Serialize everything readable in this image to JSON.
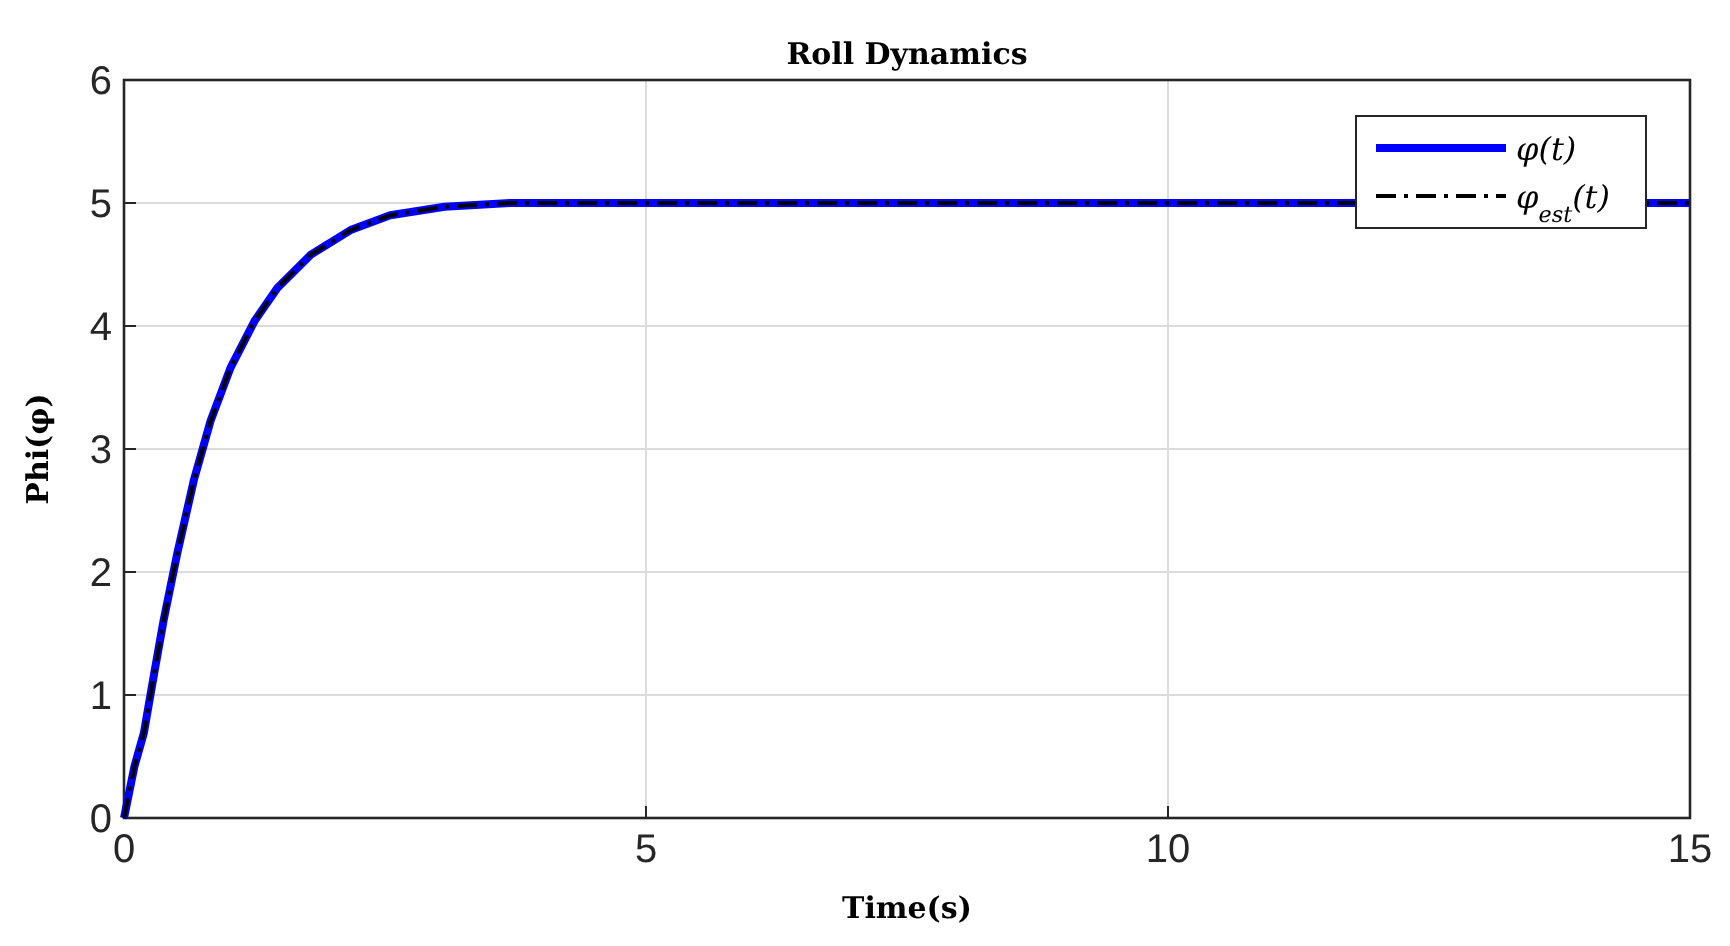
{
  "chart_data": {
    "type": "line",
    "title": "Roll Dynamics",
    "xlabel": "Time(s)",
    "ylabel": "Phi(φ)",
    "x": [
      0,
      0.1,
      0.19,
      0.29,
      0.38,
      0.51,
      0.67,
      0.83,
      1.02,
      1.25,
      1.47,
      1.79,
      2.17,
      2.55,
      3.07,
      3.7,
      4.85,
      15
    ],
    "series": [
      {
        "name": "φ(t)",
        "color": "#0000ff",
        "line_style": "solid",
        "values": [
          0,
          0.42,
          0.69,
          1.18,
          1.61,
          2.15,
          2.75,
          3.23,
          3.66,
          4.04,
          4.31,
          4.58,
          4.78,
          4.9,
          4.97,
          5.0,
          5.0,
          5.0
        ]
      },
      {
        "name": "φ$_{est}$(t)",
        "color": "#000000",
        "line_style": "dashed",
        "values": [
          0,
          0.42,
          0.69,
          1.18,
          1.61,
          2.15,
          2.75,
          3.23,
          3.66,
          4.04,
          4.31,
          4.58,
          4.78,
          4.9,
          4.97,
          5.0,
          5.0,
          5.0
        ]
      }
    ],
    "xlim": [
      0,
      15
    ],
    "xticks": [
      0,
      5,
      10,
      15
    ],
    "ylim": [
      0,
      6
    ],
    "yticks": [
      0,
      1,
      2,
      3,
      4,
      5,
      6
    ],
    "grid": true,
    "legend": "top right",
    "marker": "none"
  }
}
